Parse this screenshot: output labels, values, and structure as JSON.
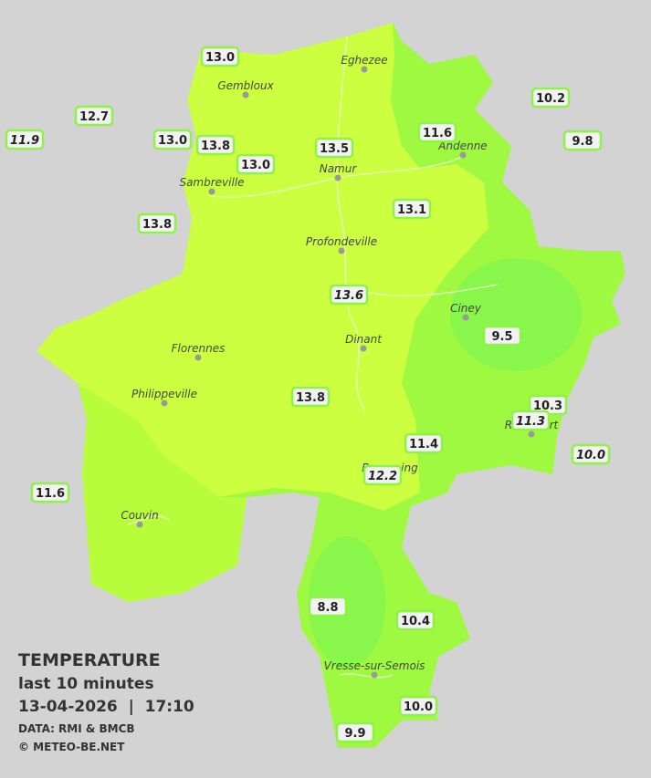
{
  "stations": [
    {
      "value": "13.0"
    },
    {
      "value": "12.7"
    },
    {
      "value": "11.9",
      "italic": true
    },
    {
      "value": "13.0"
    },
    {
      "value": "13.8"
    },
    {
      "value": "13.0"
    },
    {
      "value": "13.5"
    },
    {
      "value": "11.6"
    },
    {
      "value": "10.2"
    },
    {
      "value": "9.8"
    },
    {
      "value": "13.8"
    },
    {
      "value": "13.1"
    },
    {
      "value": "13.6",
      "italic": true
    },
    {
      "value": "9.5"
    },
    {
      "value": "13.8"
    },
    {
      "value": "10.3"
    },
    {
      "value": "11.3",
      "italic": true
    },
    {
      "value": "11.4"
    },
    {
      "value": "10.0",
      "italic": true
    },
    {
      "value": "12.2",
      "italic": true
    },
    {
      "value": "11.6"
    },
    {
      "value": "8.8"
    },
    {
      "value": "10.4"
    },
    {
      "value": "10.0"
    },
    {
      "value": "9.9"
    }
  ],
  "places": [
    {
      "name": "Eghezee"
    },
    {
      "name": "Gembloux"
    },
    {
      "name": "Andenne"
    },
    {
      "name": "Namur"
    },
    {
      "name": "Sambreville"
    },
    {
      "name": "Profondeville"
    },
    {
      "name": "Ciney"
    },
    {
      "name": "Dinant"
    },
    {
      "name": "Florennes"
    },
    {
      "name": "Philippeville"
    },
    {
      "name": "Rochefort"
    },
    {
      "name": "Beauraing"
    },
    {
      "name": "Couvin"
    },
    {
      "name": "Vresse-sur-Semois"
    }
  ],
  "legend": {
    "title": "TEMPERATURE",
    "period": "last 10 minutes",
    "datetime": "13-04-2026  |  17:10",
    "source": "DATA: RMI & BMCB",
    "copyright": "© METEO-BE.NET"
  }
}
